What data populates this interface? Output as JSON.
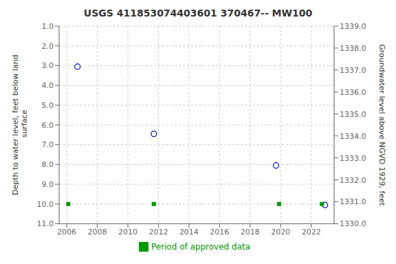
{
  "chart_data": {
    "type": "scatter",
    "title": "USGS 411853074403601 370467-- MW100",
    "ylabel": "Depth to water level, feet below land\n surface",
    "y2label": "Groundwater level above NGVD 1929, feet",
    "xlim": [
      2005.5,
      2023.5
    ],
    "xticks": [
      2006,
      2008,
      2010,
      2012,
      2014,
      2016,
      2018,
      2020,
      2022
    ],
    "ylim": [
      11.0,
      1.0
    ],
    "yticks": [
      {
        "value": 1.0,
        "label": "1.0"
      },
      {
        "value": 2.0,
        "label": "2.0"
      },
      {
        "value": 3.0,
        "label": "3.0"
      },
      {
        "value": 4.0,
        "label": "4.0"
      },
      {
        "value": 5.0,
        "label": "5.0"
      },
      {
        "value": 6.0,
        "label": "6.0"
      },
      {
        "value": 7.0,
        "label": "7.0"
      },
      {
        "value": 8.0,
        "label": "8.0"
      },
      {
        "value": 9.0,
        "label": "9.0"
      },
      {
        "value": 10.0,
        "label": "10.0"
      },
      {
        "value": 11.0,
        "label": "11.0"
      }
    ],
    "y2lim": [
      1330.0,
      1339.0
    ],
    "y2ticks": [
      {
        "value": 1339.0,
        "label": "1339.0"
      },
      {
        "value": 1338.0,
        "label": "1338.0"
      },
      {
        "value": 1337.0,
        "label": "1337.0"
      },
      {
        "value": 1336.0,
        "label": "1336.0"
      },
      {
        "value": 1335.0,
        "label": "1335.0"
      },
      {
        "value": 1334.0,
        "label": "1334.0"
      },
      {
        "value": 1333.0,
        "label": "1333.0"
      },
      {
        "value": 1332.0,
        "label": "1332.0"
      },
      {
        "value": 1331.0,
        "label": "1331.0"
      },
      {
        "value": 1330.0,
        "label": "1330.0"
      }
    ],
    "grid": true,
    "legend": "bottom",
    "series": [
      {
        "color": "#0000cc",
        "marker": "circle",
        "x": [
          2006.7,
          2011.7,
          2019.7,
          2022.9
        ],
        "values": [
          3.05,
          6.45,
          8.05,
          10.05
        ]
      },
      {
        "name": "Period of approved data",
        "color": "#009900",
        "marker": "square",
        "x": [
          2006.1,
          2011.7,
          2019.9,
          2022.7
        ],
        "values": [
          10.0,
          10.0,
          10.0,
          10.0
        ]
      }
    ]
  }
}
